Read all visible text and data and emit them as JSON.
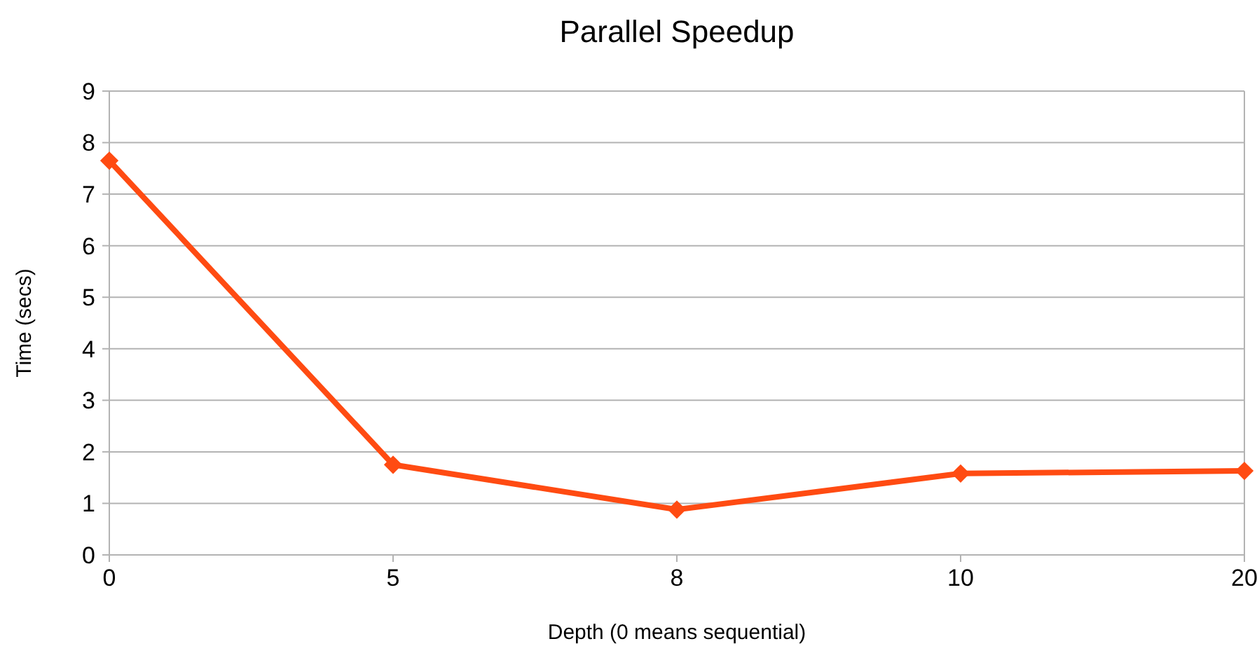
{
  "chart_data": {
    "type": "line",
    "title": "Parallel Speedup",
    "xlabel": "Depth (0 means sequential)",
    "ylabel": "Time (secs)",
    "categories": [
      "0",
      "5",
      "8",
      "10",
      "20"
    ],
    "series": [
      {
        "color": "#ff4b12",
        "values": [
          7.65,
          1.75,
          0.88,
          1.58,
          1.63
        ]
      }
    ],
    "ylim": [
      0,
      9
    ],
    "yticks": [
      0,
      1,
      2,
      3,
      4,
      5,
      6,
      7,
      8,
      9
    ],
    "grid": "y",
    "marker": "diamond",
    "line_style": "solid"
  }
}
